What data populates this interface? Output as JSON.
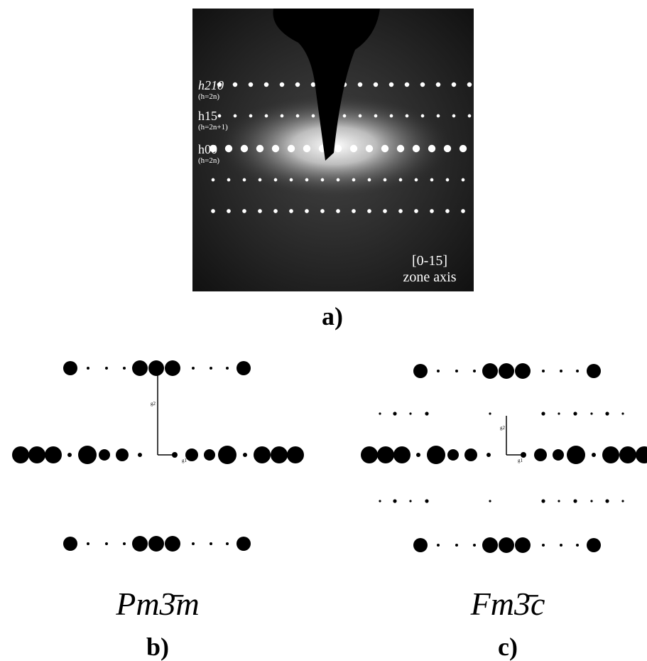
{
  "panel_a": {
    "rows": [
      {
        "label": "h210",
        "condition": "(h=2n)"
      },
      {
        "label": "h15",
        "condition": "(h=2n+1)"
      },
      {
        "label": "h00",
        "condition": "(h=2n)"
      }
    ],
    "zone_axis": "[0-15]",
    "zone_axis_note": "zone axis",
    "caption": "a)"
  },
  "panel_b": {
    "g2": "g2",
    "g1": "g1",
    "space_group": "Pm3̄m",
    "caption": "b)"
  },
  "panel_c": {
    "g2": "g2",
    "g1": "g1",
    "space_group": "Fm3̄c",
    "caption": "c)"
  }
}
